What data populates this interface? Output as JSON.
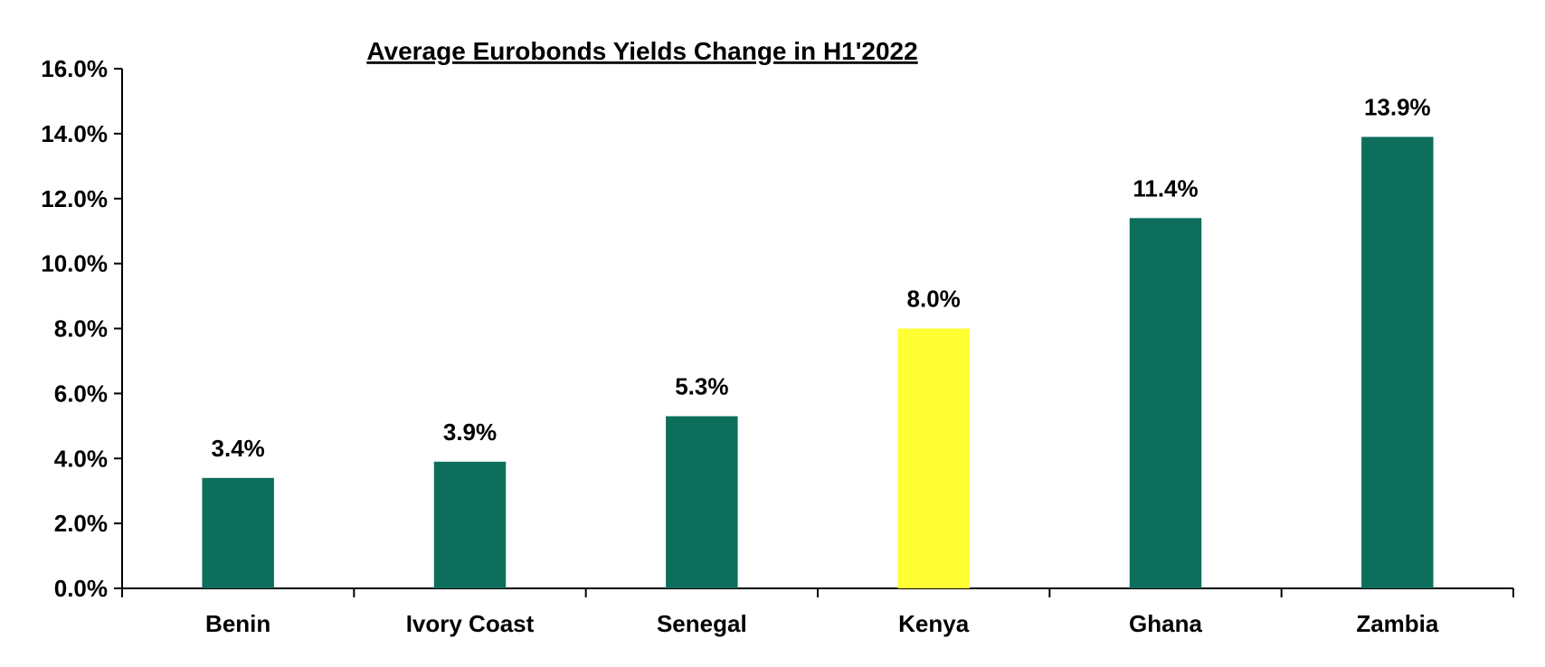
{
  "chart_data": {
    "type": "bar",
    "title": "Average Eurobonds Yields Change in H1'2022",
    "categories": [
      "Benin",
      "Ivory Coast",
      "Senegal",
      "Kenya",
      "Ghana",
      "Zambia"
    ],
    "values": [
      3.4,
      3.9,
      5.3,
      8.0,
      11.4,
      13.9
    ],
    "data_labels": [
      "3.4%",
      "3.9%",
      "5.3%",
      "8.0%",
      "11.4%",
      "13.9%"
    ],
    "bar_colors": [
      "#0e6e5c",
      "#0e6e5c",
      "#0e6e5c",
      "#ffff33",
      "#0e6e5c",
      "#0e6e5c"
    ],
    "ylim": [
      0,
      16
    ],
    "yticks": [
      0,
      2,
      4,
      6,
      8,
      10,
      12,
      14,
      16
    ],
    "ytick_labels": [
      "0.0%",
      "2.0%",
      "4.0%",
      "6.0%",
      "8.0%",
      "10.0%",
      "12.0%",
      "14.0%",
      "16.0%"
    ],
    "xlabel": "",
    "ylabel": "",
    "grid": false,
    "legend": "none"
  }
}
